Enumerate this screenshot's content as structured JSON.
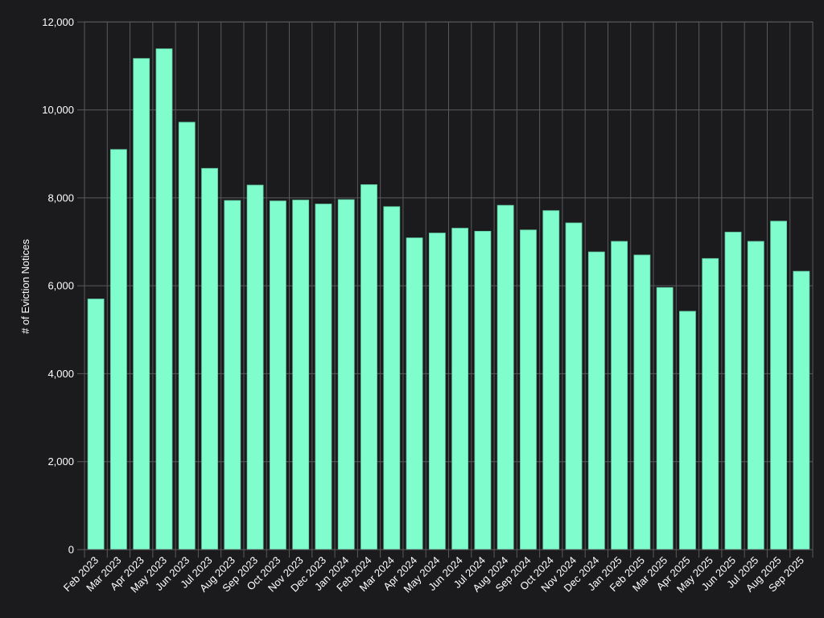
{
  "chart_data": {
    "type": "bar",
    "title": "",
    "xlabel": "",
    "ylabel": "# of Eviction Notices",
    "ylim": [
      0,
      12000
    ],
    "yticks": [
      0,
      2000,
      4000,
      6000,
      8000,
      10000,
      12000
    ],
    "ytick_labels": [
      "0",
      "2,000",
      "4,000",
      "6,000",
      "8,000",
      "10,000",
      "12,000"
    ],
    "grid": true,
    "categories": [
      "Feb 2023",
      "Mar 2023",
      "Apr 2023",
      "May 2023",
      "Jun 2023",
      "Jul 2023",
      "Aug 2023",
      "Sep 2023",
      "Oct 2023",
      "Nov 2023",
      "Dec 2023",
      "Jan 2024",
      "Feb 2024",
      "Mar 2024",
      "Apr 2024",
      "May 2024",
      "Jun 2024",
      "Jul 2024",
      "Aug 2024",
      "Sep 2024",
      "Oct 2024",
      "Nov 2024",
      "Dec 2024",
      "Jan 2025",
      "Feb 2025",
      "Mar 2025",
      "Apr 2025",
      "May 2025",
      "Jun 2025",
      "Jul 2025",
      "Aug 2025",
      "Sep 2025"
    ],
    "values": [
      5700,
      9100,
      11170,
      11390,
      9720,
      8670,
      7940,
      8290,
      7930,
      7950,
      7860,
      7960,
      8300,
      7800,
      7090,
      7200,
      7310,
      7240,
      7830,
      7270,
      7710,
      7430,
      6770,
      7010,
      6700,
      5960,
      5420,
      6620,
      7220,
      7010,
      7470,
      6330
    ],
    "colors": {
      "bar": "#80fdcc",
      "bar_edge": "#5fc9a2",
      "background": "#1b1b1d",
      "grid": "#5a5a5c",
      "text": "#ffffff"
    }
  }
}
